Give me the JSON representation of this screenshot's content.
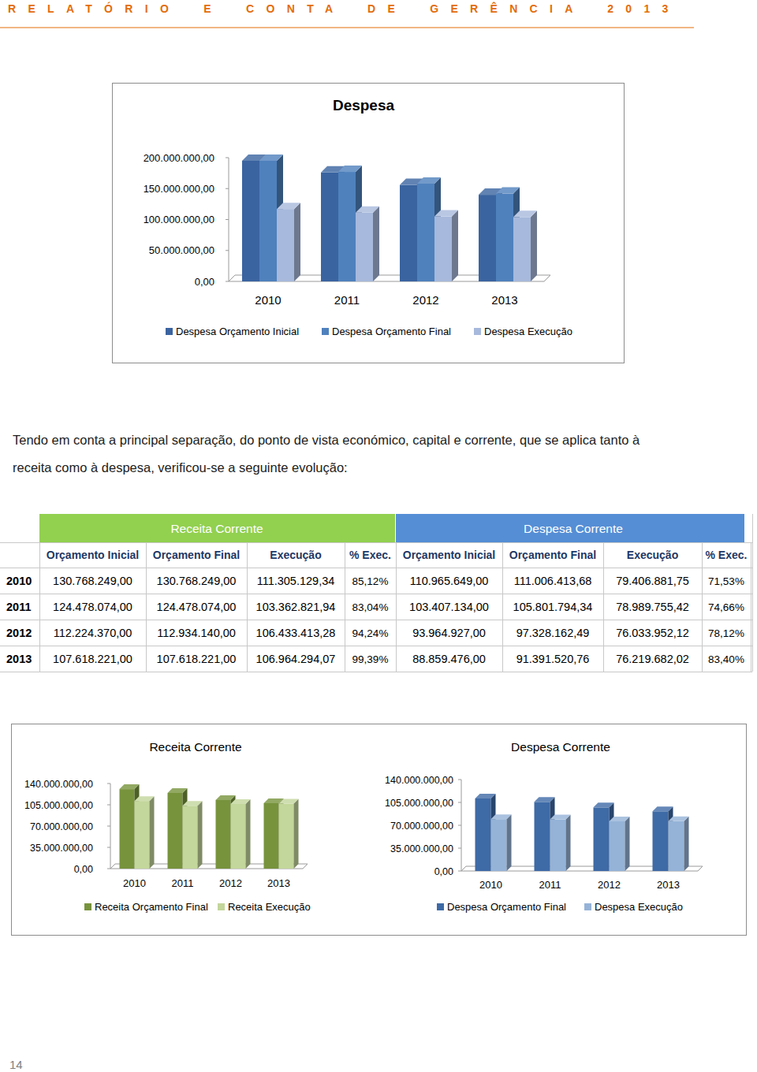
{
  "header": {
    "title": "RELATÓRIO E CONTA DE GERÊNCIA 2013"
  },
  "chart_data": [
    {
      "type": "bar",
      "title": "Despesa",
      "categories": [
        "2010",
        "2011",
        "2012",
        "2013"
      ],
      "series": [
        {
          "name": "Despesa Orçamento Inicial",
          "color": "#3a64a0",
          "values": [
            195000000,
            176000000,
            156000000,
            140000000
          ]
        },
        {
          "name": "Despesa Orçamento Final",
          "color": "#4f81bd",
          "values": [
            195000000,
            177000000,
            158000000,
            142000000
          ]
        },
        {
          "name": "Despesa Execução",
          "color": "#a7b9dc",
          "values": [
            117000000,
            111000000,
            105000000,
            104000000
          ]
        }
      ],
      "ylim": [
        0,
        200000000
      ],
      "yticks": [
        {
          "value": 0,
          "label": "0,00"
        },
        {
          "value": 50000000,
          "label": "50.000.000,00"
        },
        {
          "value": 100000000,
          "label": "100.000.000,00"
        },
        {
          "value": 150000000,
          "label": "150.000.000,00"
        },
        {
          "value": 200000000,
          "label": "200.000.000,00"
        }
      ],
      "grid": false,
      "legend": "bottom"
    },
    {
      "type": "bar",
      "title": "Receita Corrente",
      "categories": [
        "2010",
        "2011",
        "2012",
        "2013"
      ],
      "series": [
        {
          "name": "Receita Orçamento Final",
          "color": "#77933c",
          "values": [
            130768249,
            124478074,
            112934140,
            107618221
          ]
        },
        {
          "name": "Receita Execução",
          "color": "#c3d69b",
          "values": [
            111305129.34,
            103362821.94,
            106433413.28,
            106964294.07
          ]
        }
      ],
      "ylim": [
        0,
        140000000
      ],
      "yticks": [
        {
          "value": 0,
          "label": "0,00"
        },
        {
          "value": 35000000,
          "label": "35.000.000,00"
        },
        {
          "value": 70000000,
          "label": "70.000.000,00"
        },
        {
          "value": 105000000,
          "label": "105.000.000,00"
        },
        {
          "value": 140000000,
          "label": "140.000.000,00"
        }
      ],
      "grid": false,
      "legend": "bottom"
    },
    {
      "type": "bar",
      "title": "Despesa Corrente",
      "categories": [
        "2010",
        "2011",
        "2012",
        "2013"
      ],
      "series": [
        {
          "name": "Despesa Orçamento Final",
          "color": "#3e6aa6",
          "values": [
            111006413.68,
            105801794.34,
            97328162.49,
            91391520.76
          ]
        },
        {
          "name": "Despesa Execução",
          "color": "#95b3d7",
          "values": [
            79406881.75,
            78989755.42,
            76033952.12,
            76219682.02
          ]
        }
      ],
      "ylim": [
        0,
        140000000
      ],
      "yticks": [
        {
          "value": 0,
          "label": "0,00"
        },
        {
          "value": 35000000,
          "label": "35.000.000,00"
        },
        {
          "value": 70000000,
          "label": "70.000.000,00"
        },
        {
          "value": 105000000,
          "label": "105.000.000,00"
        },
        {
          "value": 140000000,
          "label": "140.000.000,00"
        }
      ],
      "grid": false,
      "legend": "bottom"
    }
  ],
  "text": {
    "lines": [
      "Tendo em conta a principal separação, do ponto de vista económico, capital e corrente, que se aplica tanto à",
      "receita como à despesa, verificou-se a seguinte evolução:"
    ]
  },
  "table": {
    "groups": [
      "Receita Corrente",
      "Despesa Corrente"
    ],
    "columns": [
      "Orçamento Inicial",
      "Orçamento Final",
      "Execução",
      "% Exec.",
      "Orçamento Inicial",
      "Orçamento Final",
      "Execução",
      "% Exec."
    ],
    "rows": [
      [
        "2010",
        "130.768.249,00",
        "130.768.249,00",
        "111.305.129,34",
        "85,12%",
        "110.965.649,00",
        "111.006.413,68",
        "79.406.881,75",
        "71,53%"
      ],
      [
        "2011",
        "124.478.074,00",
        "124.478.074,00",
        "103.362.821,94",
        "83,04%",
        "103.407.134,00",
        "105.801.794,34",
        "78.989.755,42",
        "74,66%"
      ],
      [
        "2012",
        "112.224.370,00",
        "112.934.140,00",
        "106.433.413,28",
        "94,24%",
        "93.964.927,00",
        "97.328.162,49",
        "76.033.952,12",
        "78,12%"
      ],
      [
        "2013",
        "107.618.221,00",
        "107.618.221,00",
        "106.964.294,07",
        "99,39%",
        "88.859.476,00",
        "91.391.520,76",
        "76.219.682,02",
        "83,40%"
      ]
    ]
  },
  "page_number": "14"
}
